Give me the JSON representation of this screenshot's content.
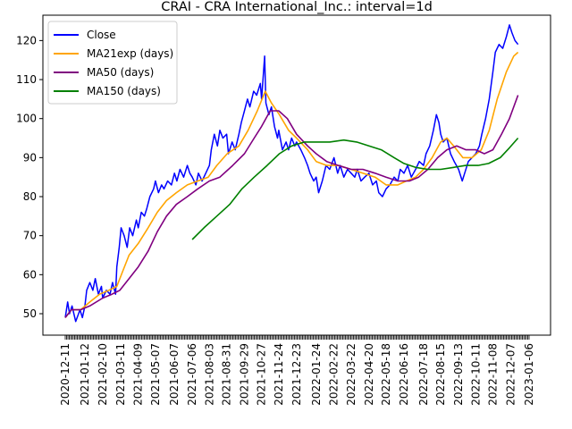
{
  "chart_data": {
    "type": "line",
    "title": "CRAI - CRA International_Inc.: interval=1d",
    "xlabel": "",
    "ylabel": "",
    "x_tick_labels": [
      "2020-12-11",
      "2021-01-12",
      "2021-02-10",
      "2021-03-11",
      "2021-04-09",
      "2021-05-07",
      "2021-06-07",
      "2021-07-06",
      "2021-08-03",
      "2021-08-31",
      "2021-09-29",
      "2021-10-27",
      "2021-11-24",
      "2021-12-23",
      "2022-01-24",
      "2022-02-22",
      "2022-03-22",
      "2022-04-20",
      "2022-05-18",
      "2022-06-16",
      "2022-07-18",
      "2022-08-15",
      "2022-09-13",
      "2022-10-11",
      "2022-11-08",
      "2022-12-07",
      "2023-01-06"
    ],
    "y_ticks": [
      50,
      60,
      70,
      80,
      90,
      100,
      110,
      120
    ],
    "ylim": [
      44.5,
      126.5
    ],
    "grid": false,
    "legend_position": "top-left",
    "series": [
      {
        "name": "Close",
        "color": "#0000ff",
        "points": [
          [
            "2020-12-11",
            49
          ],
          [
            "2020-12-15",
            53
          ],
          [
            "2020-12-18",
            50
          ],
          [
            "2020-12-22",
            52
          ],
          [
            "2020-12-28",
            48
          ],
          [
            "2021-01-04",
            51
          ],
          [
            "2021-01-08",
            49
          ],
          [
            "2021-01-12",
            52
          ],
          [
            "2021-01-15",
            56
          ],
          [
            "2021-01-20",
            58
          ],
          [
            "2021-01-25",
            56
          ],
          [
            "2021-01-29",
            59
          ],
          [
            "2021-02-03",
            55
          ],
          [
            "2021-02-08",
            57
          ],
          [
            "2021-02-10",
            54
          ],
          [
            "2021-02-16",
            56
          ],
          [
            "2021-02-22",
            55
          ],
          [
            "2021-02-26",
            58
          ],
          [
            "2021-03-03",
            55
          ],
          [
            "2021-03-05",
            62
          ],
          [
            "2021-03-09",
            67
          ],
          [
            "2021-03-12",
            72
          ],
          [
            "2021-03-17",
            70
          ],
          [
            "2021-03-22",
            67
          ],
          [
            "2021-03-26",
            72
          ],
          [
            "2021-03-31",
            70
          ],
          [
            "2021-04-06",
            74
          ],
          [
            "2021-04-09",
            72
          ],
          [
            "2021-04-14",
            76
          ],
          [
            "2021-04-19",
            75
          ],
          [
            "2021-04-23",
            77
          ],
          [
            "2021-04-28",
            80
          ],
          [
            "2021-05-04",
            82
          ],
          [
            "2021-05-07",
            84
          ],
          [
            "2021-05-12",
            81
          ],
          [
            "2021-05-17",
            83
          ],
          [
            "2021-05-21",
            82
          ],
          [
            "2021-05-27",
            84
          ],
          [
            "2021-06-02",
            83
          ],
          [
            "2021-06-07",
            86
          ],
          [
            "2021-06-11",
            84
          ],
          [
            "2021-06-16",
            87
          ],
          [
            "2021-06-22",
            85
          ],
          [
            "2021-06-28",
            88
          ],
          [
            "2021-07-02",
            86
          ],
          [
            "2021-07-06",
            85
          ],
          [
            "2021-07-12",
            83
          ],
          [
            "2021-07-16",
            86
          ],
          [
            "2021-07-22",
            84
          ],
          [
            "2021-07-28",
            86
          ],
          [
            "2021-08-03",
            88
          ],
          [
            "2021-08-06",
            92
          ],
          [
            "2021-08-11",
            96
          ],
          [
            "2021-08-16",
            93
          ],
          [
            "2021-08-20",
            97
          ],
          [
            "2021-08-25",
            95
          ],
          [
            "2021-08-31",
            96
          ],
          [
            "2021-09-03",
            91
          ],
          [
            "2021-09-09",
            94
          ],
          [
            "2021-09-14",
            92
          ],
          [
            "2021-09-20",
            96
          ],
          [
            "2021-09-24",
            99
          ],
          [
            "2021-09-29",
            102
          ],
          [
            "2021-10-04",
            105
          ],
          [
            "2021-10-08",
            103
          ],
          [
            "2021-10-14",
            107
          ],
          [
            "2021-10-19",
            106
          ],
          [
            "2021-10-25",
            109
          ],
          [
            "2021-10-27",
            105
          ],
          [
            "2021-11-01",
            116
          ],
          [
            "2021-11-03",
            104
          ],
          [
            "2021-11-08",
            101
          ],
          [
            "2021-11-12",
            103
          ],
          [
            "2021-11-17",
            98
          ],
          [
            "2021-11-22",
            95
          ],
          [
            "2021-11-24",
            97
          ],
          [
            "2021-11-30",
            92
          ],
          [
            "2021-12-06",
            94
          ],
          [
            "2021-12-10",
            92
          ],
          [
            "2021-12-15",
            95
          ],
          [
            "2021-12-20",
            93
          ],
          [
            "2021-12-23",
            94
          ],
          [
            "2021-12-30",
            92
          ],
          [
            "2022-01-05",
            90
          ],
          [
            "2022-01-10",
            88
          ],
          [
            "2022-01-14",
            86
          ],
          [
            "2022-01-20",
            84
          ],
          [
            "2022-01-24",
            85
          ],
          [
            "2022-01-28",
            81
          ],
          [
            "2022-02-03",
            84
          ],
          [
            "2022-02-09",
            88
          ],
          [
            "2022-02-15",
            87
          ],
          [
            "2022-02-22",
            90
          ],
          [
            "2022-02-28",
            86
          ],
          [
            "2022-03-04",
            88
          ],
          [
            "2022-03-10",
            85
          ],
          [
            "2022-03-16",
            87
          ],
          [
            "2022-03-22",
            86
          ],
          [
            "2022-03-28",
            85
          ],
          [
            "2022-04-01",
            87
          ],
          [
            "2022-04-07",
            84
          ],
          [
            "2022-04-13",
            85
          ],
          [
            "2022-04-20",
            86
          ],
          [
            "2022-04-26",
            83
          ],
          [
            "2022-05-02",
            84
          ],
          [
            "2022-05-06",
            81
          ],
          [
            "2022-05-12",
            80
          ],
          [
            "2022-05-18",
            82
          ],
          [
            "2022-05-24",
            83
          ],
          [
            "2022-05-31",
            85
          ],
          [
            "2022-06-06",
            84
          ],
          [
            "2022-06-10",
            87
          ],
          [
            "2022-06-16",
            86
          ],
          [
            "2022-06-22",
            88
          ],
          [
            "2022-06-28",
            85
          ],
          [
            "2022-07-05",
            87
          ],
          [
            "2022-07-11",
            89
          ],
          [
            "2022-07-18",
            88
          ],
          [
            "2022-07-22",
            91
          ],
          [
            "2022-07-28",
            93
          ],
          [
            "2022-08-03",
            97
          ],
          [
            "2022-08-08",
            101
          ],
          [
            "2022-08-12",
            99
          ],
          [
            "2022-08-15",
            96
          ],
          [
            "2022-08-19",
            94
          ],
          [
            "2022-08-25",
            95
          ],
          [
            "2022-08-31",
            91
          ],
          [
            "2022-09-06",
            89
          ],
          [
            "2022-09-13",
            87
          ],
          [
            "2022-09-19",
            84
          ],
          [
            "2022-09-23",
            86
          ],
          [
            "2022-09-29",
            89
          ],
          [
            "2022-10-05",
            90
          ],
          [
            "2022-10-11",
            91
          ],
          [
            "2022-10-17",
            93
          ],
          [
            "2022-10-21",
            96
          ],
          [
            "2022-10-27",
            100
          ],
          [
            "2022-11-02",
            105
          ],
          [
            "2022-11-08",
            112
          ],
          [
            "2022-11-12",
            117
          ],
          [
            "2022-11-18",
            119
          ],
          [
            "2022-11-24",
            118
          ],
          [
            "2022-11-30",
            121
          ],
          [
            "2022-12-05",
            124
          ],
          [
            "2022-12-09",
            122
          ],
          [
            "2022-12-14",
            120
          ],
          [
            "2022-12-19",
            119
          ]
        ]
      },
      {
        "name": "MA21exp (days)",
        "color": "#ffa500",
        "points": [
          [
            "2020-12-11",
            49
          ],
          [
            "2020-12-21",
            51
          ],
          [
            "2021-01-05",
            51
          ],
          [
            "2021-01-20",
            53
          ],
          [
            "2021-02-05",
            55
          ],
          [
            "2021-02-20",
            56
          ],
          [
            "2021-03-05",
            57
          ],
          [
            "2021-03-15",
            61
          ],
          [
            "2021-03-25",
            65
          ],
          [
            "2021-04-09",
            68
          ],
          [
            "2021-04-25",
            72
          ],
          [
            "2021-05-10",
            76
          ],
          [
            "2021-05-25",
            79
          ],
          [
            "2021-06-10",
            81
          ],
          [
            "2021-06-28",
            83
          ],
          [
            "2021-07-15",
            84
          ],
          [
            "2021-08-01",
            85
          ],
          [
            "2021-08-15",
            88
          ],
          [
            "2021-09-01",
            91
          ],
          [
            "2021-09-20",
            93
          ],
          [
            "2021-10-05",
            97
          ],
          [
            "2021-10-20",
            102
          ],
          [
            "2021-11-02",
            107
          ],
          [
            "2021-11-12",
            104
          ],
          [
            "2021-11-25",
            101
          ],
          [
            "2021-12-10",
            97
          ],
          [
            "2021-12-23",
            95
          ],
          [
            "2022-01-10",
            92
          ],
          [
            "2022-01-24",
            89
          ],
          [
            "2022-02-10",
            88
          ],
          [
            "2022-03-01",
            88
          ],
          [
            "2022-03-22",
            87
          ],
          [
            "2022-04-10",
            86
          ],
          [
            "2022-04-30",
            85
          ],
          [
            "2022-05-18",
            83
          ],
          [
            "2022-06-06",
            83
          ],
          [
            "2022-06-20",
            84
          ],
          [
            "2022-07-05",
            85
          ],
          [
            "2022-07-18",
            87
          ],
          [
            "2022-08-01",
            90
          ],
          [
            "2022-08-15",
            94
          ],
          [
            "2022-08-25",
            95
          ],
          [
            "2022-09-05",
            93
          ],
          [
            "2022-09-20",
            90
          ],
          [
            "2022-10-05",
            90
          ],
          [
            "2022-10-20",
            92
          ],
          [
            "2022-11-02",
            97
          ],
          [
            "2022-11-15",
            105
          ],
          [
            "2022-11-30",
            112
          ],
          [
            "2022-12-12",
            116
          ],
          [
            "2022-12-19",
            117
          ]
        ]
      },
      {
        "name": "MA50 (days)",
        "color": "#800080",
        "points": [
          [
            "2020-12-11",
            49
          ],
          [
            "2020-12-21",
            51
          ],
          [
            "2021-01-05",
            51
          ],
          [
            "2021-01-20",
            52
          ],
          [
            "2021-02-10",
            54
          ],
          [
            "2021-02-25",
            55
          ],
          [
            "2021-03-10",
            56
          ],
          [
            "2021-03-25",
            59
          ],
          [
            "2021-04-09",
            62
          ],
          [
            "2021-04-25",
            66
          ],
          [
            "2021-05-10",
            71
          ],
          [
            "2021-05-25",
            75
          ],
          [
            "2021-06-10",
            78
          ],
          [
            "2021-06-28",
            80
          ],
          [
            "2021-07-15",
            82
          ],
          [
            "2021-08-03",
            84
          ],
          [
            "2021-08-20",
            85
          ],
          [
            "2021-09-10",
            88
          ],
          [
            "2021-09-29",
            91
          ],
          [
            "2021-10-15",
            95
          ],
          [
            "2021-10-27",
            98
          ],
          [
            "2021-11-10",
            102
          ],
          [
            "2021-11-24",
            102
          ],
          [
            "2021-12-08",
            100
          ],
          [
            "2021-12-23",
            96
          ],
          [
            "2022-01-10",
            93
          ],
          [
            "2022-01-24",
            91
          ],
          [
            "2022-02-10",
            89
          ],
          [
            "2022-03-01",
            88
          ],
          [
            "2022-03-22",
            87
          ],
          [
            "2022-04-10",
            87
          ],
          [
            "2022-04-30",
            86
          ],
          [
            "2022-05-18",
            85
          ],
          [
            "2022-06-06",
            84
          ],
          [
            "2022-06-25",
            84
          ],
          [
            "2022-07-10",
            85
          ],
          [
            "2022-07-25",
            87
          ],
          [
            "2022-08-10",
            90
          ],
          [
            "2022-08-25",
            92
          ],
          [
            "2022-09-10",
            93
          ],
          [
            "2022-09-25",
            92
          ],
          [
            "2022-10-11",
            92
          ],
          [
            "2022-10-25",
            91
          ],
          [
            "2022-11-08",
            92
          ],
          [
            "2022-11-22",
            96
          ],
          [
            "2022-12-05",
            100
          ],
          [
            "2022-12-19",
            106
          ]
        ]
      },
      {
        "name": "MA150 (days)",
        "color": "#008000",
        "points": [
          [
            "2021-07-06",
            69
          ],
          [
            "2021-07-25",
            72
          ],
          [
            "2021-08-15",
            75
          ],
          [
            "2021-09-05",
            78
          ],
          [
            "2021-09-25",
            82
          ],
          [
            "2021-10-15",
            85
          ],
          [
            "2021-11-05",
            88
          ],
          [
            "2021-11-25",
            91
          ],
          [
            "2021-12-15",
            93
          ],
          [
            "2022-01-05",
            94
          ],
          [
            "2022-01-24",
            94
          ],
          [
            "2022-02-15",
            94
          ],
          [
            "2022-03-10",
            94.5
          ],
          [
            "2022-03-31",
            94
          ],
          [
            "2022-04-20",
            93
          ],
          [
            "2022-05-10",
            92
          ],
          [
            "2022-05-31",
            90
          ],
          [
            "2022-06-16",
            88.5
          ],
          [
            "2022-07-05",
            87.5
          ],
          [
            "2022-07-25",
            87
          ],
          [
            "2022-08-15",
            87
          ],
          [
            "2022-09-05",
            87.5
          ],
          [
            "2022-09-25",
            88
          ],
          [
            "2022-10-15",
            88
          ],
          [
            "2022-11-01",
            88.5
          ],
          [
            "2022-11-20",
            90
          ],
          [
            "2022-12-05",
            92.5
          ],
          [
            "2022-12-19",
            95
          ]
        ]
      }
    ]
  }
}
